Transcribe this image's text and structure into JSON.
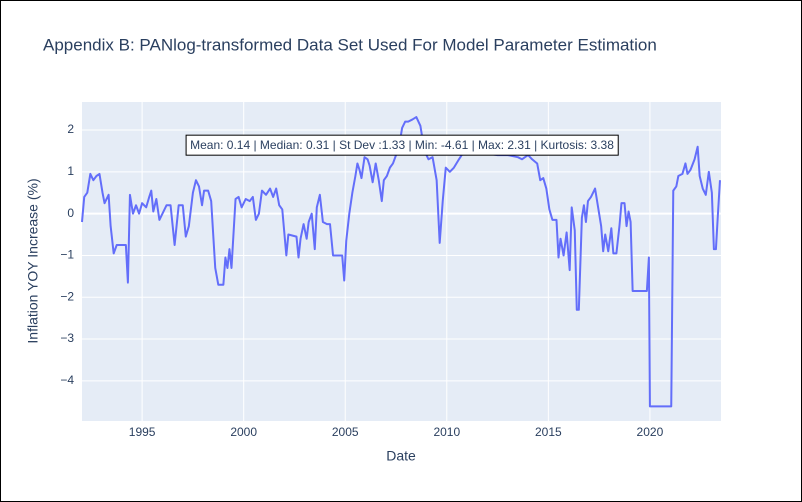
{
  "chart_data": {
    "type": "line",
    "title": "Appendix B: PANlog-transformed Data Set Used For Model Parameter Estimation",
    "x_label": "Date",
    "y_label": "Inflation YOY Increase (%)",
    "annotations": [
      "Mean: 0.14 | Median: 0.31 | St Dev :1.33 | Min: -4.61 | Max: 2.31 | Kurtosis: 3.38"
    ],
    "color": "#636efa",
    "grid": true,
    "xlim": [
      1992.04,
      2023.5
    ],
    "xticks": [
      1995,
      2000,
      2005,
      2010,
      2015,
      2020
    ],
    "ylim": [
      -4.96,
      2.67
    ],
    "yticks": [
      {
        "value": -4,
        "label": "−4"
      },
      {
        "value": -3,
        "label": "−3"
      },
      {
        "value": -2,
        "label": "−2"
      },
      {
        "value": -1,
        "label": "−1"
      },
      0,
      1,
      2
    ],
    "x": [
      1992.04,
      1992.15,
      1992.3,
      1992.45,
      1992.6,
      1992.75,
      1992.9,
      1993.05,
      1993.15,
      1993.35,
      1993.45,
      1993.6,
      1993.75,
      1994.0,
      1994.2,
      1994.3,
      1994.4,
      1994.55,
      1994.7,
      1994.85,
      1995.0,
      1995.2,
      1995.35,
      1995.45,
      1995.55,
      1995.7,
      1995.85,
      1996.0,
      1996.2,
      1996.4,
      1996.6,
      1996.8,
      1997.0,
      1997.15,
      1997.3,
      1997.5,
      1997.65,
      1997.8,
      1997.95,
      1998.05,
      1998.25,
      1998.4,
      1998.6,
      1998.75,
      1999.0,
      1999.1,
      1999.2,
      1999.3,
      1999.4,
      1999.6,
      1999.75,
      1999.9,
      2000.1,
      2000.3,
      2000.45,
      2000.6,
      2000.75,
      2000.9,
      2001.1,
      2001.3,
      2001.45,
      2001.6,
      2001.75,
      2001.9,
      2002.1,
      2002.2,
      2002.6,
      2002.7,
      2002.8,
      2002.95,
      2003.1,
      2003.2,
      2003.35,
      2003.5,
      2003.6,
      2003.75,
      2003.9,
      2004.1,
      2004.25,
      2004.4,
      2004.6,
      2004.85,
      2004.95,
      2005.05,
      2005.2,
      2005.35,
      2005.5,
      2005.6,
      2005.7,
      2005.8,
      2005.95,
      2006.1,
      2006.2,
      2006.35,
      2006.5,
      2006.65,
      2006.8,
      2006.9,
      2007.05,
      2007.2,
      2007.35,
      2007.5,
      2007.65,
      2007.8,
      2007.95,
      2008.1,
      2008.3,
      2008.5,
      2008.7,
      2008.9,
      2009.1,
      2009.3,
      2009.5,
      2009.65,
      2009.8,
      2009.95,
      2010.15,
      2010.35,
      2010.6,
      2010.8,
      2011.1,
      2011.8,
      2012.5,
      2013.0,
      2013.5,
      2013.7,
      2014.0,
      2014.2,
      2014.45,
      2014.6,
      2014.75,
      2014.9,
      2015.05,
      2015.2,
      2015.4,
      2015.5,
      2015.6,
      2015.75,
      2015.9,
      2016.05,
      2016.15,
      2016.3,
      2016.4,
      2016.5,
      2016.65,
      2016.75,
      2016.85,
      2016.95,
      2017.1,
      2017.3,
      2017.45,
      2017.6,
      2017.7,
      2017.8,
      2017.95,
      2018.1,
      2018.2,
      2018.35,
      2018.5,
      2018.6,
      2018.75,
      2018.85,
      2018.95,
      2019.05,
      2019.15,
      2019.5,
      2019.85,
      2019.95,
      2020.0,
      2020.5,
      2021.05,
      2021.15,
      2021.3,
      2021.4,
      2021.6,
      2021.75,
      2021.85,
      2022.0,
      2022.2,
      2022.35,
      2022.45,
      2022.6,
      2022.75,
      2022.9,
      2023.05,
      2023.15,
      2023.25,
      2023.35,
      2023.45
    ],
    "values": [
      -0.2,
      0.4,
      0.5,
      0.95,
      0.8,
      0.9,
      0.95,
      0.5,
      0.25,
      0.45,
      -0.3,
      -0.95,
      -0.75,
      -0.75,
      -0.75,
      -1.65,
      0.45,
      0.0,
      0.2,
      0.0,
      0.25,
      0.15,
      0.4,
      0.55,
      0.05,
      0.35,
      -0.15,
      0.0,
      0.2,
      0.2,
      -0.75,
      0.2,
      0.2,
      -0.55,
      -0.3,
      0.5,
      0.8,
      0.65,
      0.2,
      0.55,
      0.55,
      0.3,
      -1.3,
      -1.7,
      -1.7,
      -1.05,
      -1.3,
      -0.85,
      -1.3,
      0.35,
      0.4,
      0.15,
      0.35,
      0.3,
      0.4,
      -0.15,
      0.0,
      0.55,
      0.45,
      0.6,
      0.4,
      0.6,
      0.2,
      0.1,
      -1.0,
      -0.5,
      -0.55,
      -1.05,
      -0.6,
      -0.25,
      -0.6,
      -0.2,
      0.0,
      -0.85,
      0.15,
      0.45,
      -0.2,
      -0.25,
      -0.25,
      -1.0,
      -1.0,
      -1.0,
      -1.6,
      -0.65,
      0.0,
      0.5,
      0.9,
      1.2,
      1.05,
      0.85,
      1.35,
      1.3,
      1.15,
      0.75,
      1.2,
      0.8,
      0.3,
      0.8,
      0.9,
      1.1,
      1.2,
      1.4,
      1.6,
      2.05,
      2.2,
      2.2,
      2.25,
      2.31,
      2.1,
      1.5,
      1.3,
      1.35,
      0.8,
      -0.7,
      0.3,
      1.1,
      1.0,
      1.1,
      1.3,
      1.45,
      1.5,
      1.45,
      1.4,
      1.4,
      1.35,
      1.3,
      1.4,
      1.3,
      1.2,
      0.8,
      0.85,
      0.6,
      0.1,
      -0.15,
      -0.15,
      -1.05,
      -0.6,
      -1.0,
      -0.45,
      -1.35,
      0.15,
      -0.4,
      -2.3,
      -2.3,
      -0.1,
      0.2,
      -0.2,
      0.3,
      0.4,
      0.6,
      0.15,
      -0.3,
      -0.9,
      -0.5,
      -0.9,
      -0.35,
      -0.95,
      -0.95,
      -0.3,
      0.25,
      0.25,
      -0.3,
      0.05,
      -0.2,
      -1.85,
      -1.85,
      -1.85,
      -1.05,
      -4.61,
      -4.61,
      -4.61,
      0.55,
      0.65,
      0.9,
      0.95,
      1.2,
      0.95,
      1.05,
      1.3,
      1.6,
      0.9,
      0.6,
      0.45,
      1.0,
      0.5,
      -0.85,
      -0.85,
      0.0,
      0.8
    ]
  }
}
